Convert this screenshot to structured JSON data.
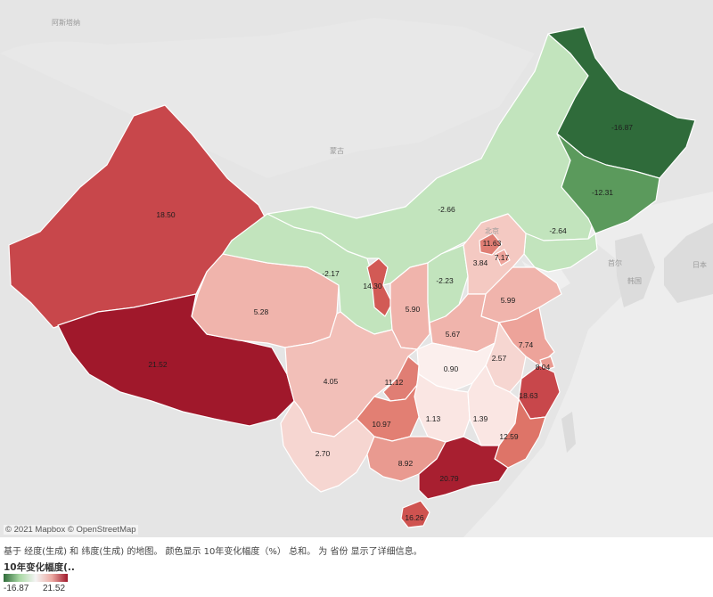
{
  "map": {
    "attribution": "© 2021 Mapbox © OpenStreetMap",
    "basemap_labels": [
      "蒙古",
      "阿斯塔纳",
      "北京",
      "日本",
      "韩国",
      "首尔"
    ],
    "provinces": [
      {
        "key": "xinjiang",
        "value": "18.50",
        "color": "#c8474b"
      },
      {
        "key": "tibet",
        "value": "21.52",
        "color": "#a0182b"
      },
      {
        "key": "qinghai",
        "value": "5.28",
        "color": "#f0b4ac"
      },
      {
        "key": "gansu",
        "value": "-2.17",
        "color": "#c2e4bd"
      },
      {
        "key": "ningxia",
        "value": "14.30",
        "color": "#d25a55"
      },
      {
        "key": "shaanxi",
        "value": "5.90",
        "color": "#f0b4ac"
      },
      {
        "key": "inner_mongolia",
        "value": "-2.66",
        "color": "#c2e4bd"
      },
      {
        "key": "shanxi",
        "value": "-2.23",
        "color": "#c2e4bd"
      },
      {
        "key": "heilongjiang",
        "value": "-16.87",
        "color": "#2f6b3a"
      },
      {
        "key": "jilin",
        "value": "-12.31",
        "color": "#5b9a5c"
      },
      {
        "key": "liaoning",
        "value": "-2.64",
        "color": "#c2e4bd"
      },
      {
        "key": "hebei",
        "value": "3.84",
        "color": "#f4c9c2"
      },
      {
        "key": "beijing",
        "value": "11.63",
        "color": "#e07e74"
      },
      {
        "key": "tianjin",
        "value": "7.17",
        "color": "#eda39a"
      },
      {
        "key": "shandong",
        "value": "5.99",
        "color": "#f0b4ac"
      },
      {
        "key": "henan",
        "value": "5.67",
        "color": "#f0b4ac"
      },
      {
        "key": "jiangsu",
        "value": "7.74",
        "color": "#eda39a"
      },
      {
        "key": "shanghai",
        "value": "8.04",
        "color": "#e99a90"
      },
      {
        "key": "anhui",
        "value": "2.57",
        "color": "#f6d6d1"
      },
      {
        "key": "hubei",
        "value": "0.90",
        "color": "#fbefed"
      },
      {
        "key": "sichuan",
        "value": "4.05",
        "color": "#f2bfb8"
      },
      {
        "key": "chongqing",
        "value": "11.12",
        "color": "#e07e74"
      },
      {
        "key": "zhejiang",
        "value": "18.63",
        "color": "#c8474b"
      },
      {
        "key": "hunan",
        "value": "1.13",
        "color": "#fae6e3"
      },
      {
        "key": "jiangxi",
        "value": "1.39",
        "color": "#fae6e3"
      },
      {
        "key": "guizhou",
        "value": "10.97",
        "color": "#e27f73"
      },
      {
        "key": "fujian",
        "value": "12.59",
        "color": "#de7468"
      },
      {
        "key": "yunnan",
        "value": "2.70",
        "color": "#f6d6d1"
      },
      {
        "key": "guangxi",
        "value": "8.92",
        "color": "#e99a90"
      },
      {
        "key": "guangdong",
        "value": "20.79",
        "color": "#a81f30"
      },
      {
        "key": "hainan",
        "value": "16.26",
        "color": "#cf5350"
      }
    ]
  },
  "caption": "基于 经度(生成) 和 纬度(生成) 的地图。 颜色显示 10年变化幅度（%） 总和。 为 省份 显示了详细信息。",
  "legend": {
    "title": "10年变化幅度(..",
    "min": "-16.87",
    "max": "21.52",
    "min_color": "#2f6b3a",
    "max_color": "#a0182b"
  }
}
